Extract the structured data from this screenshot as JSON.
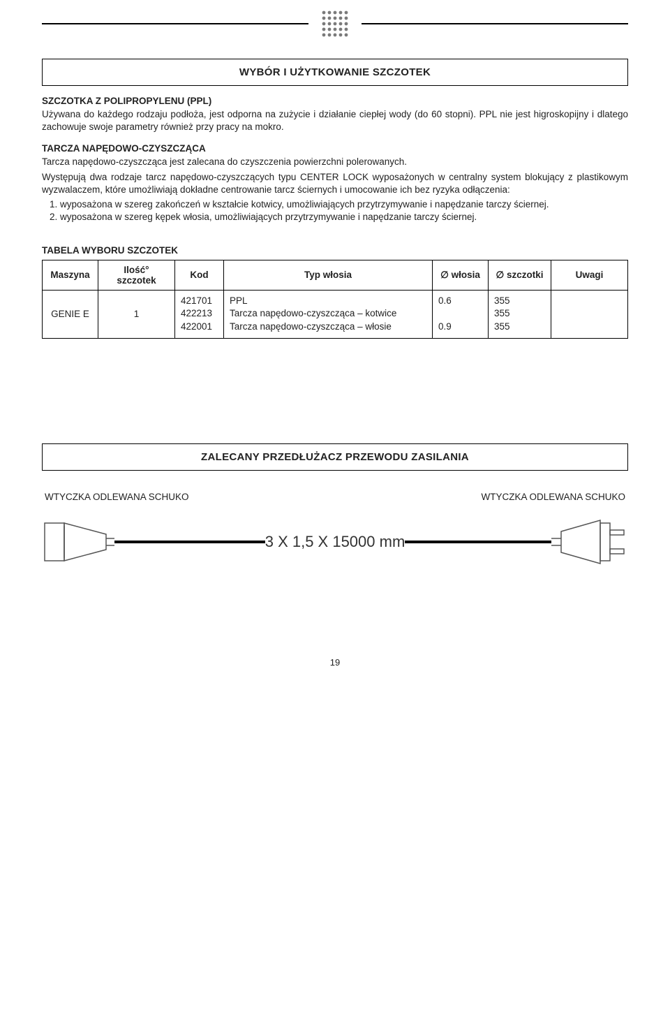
{
  "header": {
    "dot_logo": {
      "rows": 5,
      "cols": 5,
      "dot_radius": 2.4,
      "gap": 8,
      "fill": "#7a7a7a"
    }
  },
  "section1": {
    "title": "WYBÓR I UŻYTKOWANIE SZCZOTEK",
    "ppl": {
      "heading": "SZCZOTKA Z POLIPROPYLENU (PPL)",
      "body": "Używana do każdego rodzaju podłoża, jest odporna na zużycie i działanie ciepłej wody (do 60 stopni). PPL nie jest higroskopijny i dlatego zachowuje swoje parametry również przy pracy na mokro."
    },
    "tarcza": {
      "heading": "TARCZA NAPĘDOWO-CZYSZCZĄCA",
      "p1": "Tarcza napędowo-czyszcząca jest zalecana do czyszczenia powierzchni polerowanych.",
      "p2": "Występują dwa rodzaje tarcz napędowo-czyszczących typu CENTER LOCK wyposażonych w centralny system blokujący z plastikowym wyzwalaczem, które umożliwiają dokładne centrowanie tarcz ściernych i umocowanie ich bez ryzyka odłączenia:",
      "li1": "wyposażona w szereg zakończeń w kształcie kotwicy, umożliwiających przytrzymywanie i napędzanie tarczy ściernej.",
      "li2": "wyposażona w szereg kępek włosia, umożliwiających przytrzymywanie i napędzanie tarczy ściernej."
    }
  },
  "table": {
    "title": "TABELA WYBORU SZCZOTEK",
    "headers": {
      "maszyna": "Maszyna",
      "ilosc": "Ilość° szczotek",
      "kod": "Kod",
      "typ": "Typ włosia",
      "d_wlosia": "∅ włosia",
      "d_szczotki": "∅ szczotki",
      "uwagi": "Uwagi"
    },
    "rows": [
      {
        "maszyna": "GENIE E",
        "ilosc": "1",
        "kod": [
          "421701",
          "422213",
          "422001"
        ],
        "typ": [
          "PPL",
          "Tarcza napędowo-czyszcząca – kotwice",
          "Tarcza napędowo-czyszcząca – włosie"
        ],
        "d_wlosia": [
          "0.6",
          "",
          "0.9"
        ],
        "d_szczotki": [
          "355",
          "355",
          "355"
        ],
        "uwagi": ""
      }
    ]
  },
  "section2": {
    "title": "ZALECANY PRZEDŁUŻACZ PRZEWODU ZASILANIA",
    "left_plug_label": "WTYCZKA ODLEWANA SCHUKO",
    "right_plug_label": "WTYCZKA ODLEWANA SCHUKO",
    "cable_spec": "3 X 1,5 X 15000 mm"
  },
  "page_number": "19",
  "colors": {
    "text": "#222222",
    "rule": "#000000",
    "background": "#ffffff",
    "cable_stroke": "#555555"
  }
}
